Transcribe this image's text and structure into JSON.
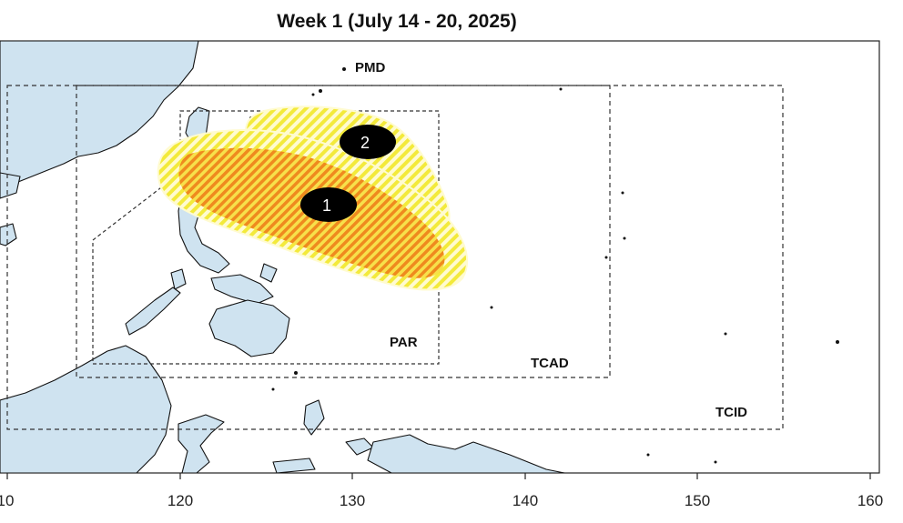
{
  "map": {
    "title": "Week 1 (July 14 - 20, 2025)",
    "x_axis": {
      "ticks": [
        "10",
        "120",
        "130",
        "140",
        "150",
        "160"
      ]
    },
    "boundaries": {
      "pmd": "PMD",
      "par": "PAR",
      "tcad": "TCAD",
      "tcid": "TCID"
    },
    "areas": [
      {
        "label": "1",
        "fill": "#f5a623"
      },
      {
        "label": "2",
        "fill": "#f7e842"
      }
    ],
    "colors": {
      "land": "#cfe3f0",
      "coast": "#111111",
      "hatch_light": "#f7ee5a",
      "hatch_dark": "#f0921e"
    }
  }
}
